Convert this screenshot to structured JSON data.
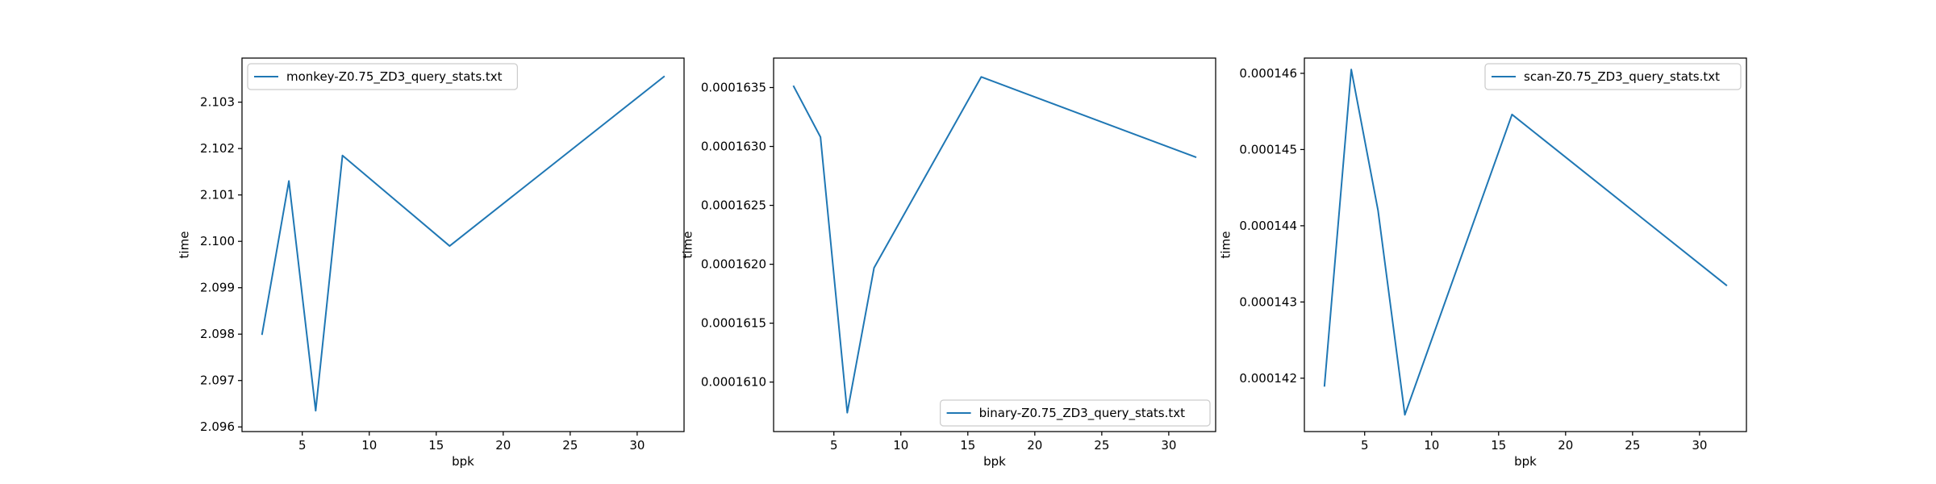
{
  "chart_data": [
    {
      "type": "line",
      "xlabel": "bpk",
      "ylabel": "time",
      "xlim": [
        0.5,
        33.5
      ],
      "ylim": [
        2.0959,
        2.10395
      ],
      "xticks": [
        5,
        10,
        15,
        20,
        25,
        30
      ],
      "xtick_labels": [
        "5",
        "10",
        "15",
        "20",
        "25",
        "30"
      ],
      "yticks": [
        2.096,
        2.097,
        2.098,
        2.099,
        2.1,
        2.101,
        2.102,
        2.103
      ],
      "ytick_labels": [
        "2.096",
        "2.097",
        "2.098",
        "2.099",
        "2.100",
        "2.101",
        "2.102",
        "2.103"
      ],
      "legend_position": "upper-left",
      "series": [
        {
          "name": "monkey-Z0.75_ZD3_query_stats.txt",
          "color": "#1f77b4",
          "x": [
            2,
            4,
            6,
            8,
            16,
            32
          ],
          "y": [
            2.098,
            2.1013,
            2.09635,
            2.10185,
            2.0999,
            2.10355
          ]
        }
      ]
    },
    {
      "type": "line",
      "xlabel": "bpk",
      "ylabel": "time",
      "xlim": [
        0.5,
        33.5
      ],
      "ylim": [
        0.00016058,
        0.00016375
      ],
      "xticks": [
        5,
        10,
        15,
        20,
        25,
        30
      ],
      "xtick_labels": [
        "5",
        "10",
        "15",
        "20",
        "25",
        "30"
      ],
      "yticks": [
        0.000161,
        0.0001615,
        0.000162,
        0.0001625,
        0.000163,
        0.0001635
      ],
      "ytick_labels": [
        "0.0001610",
        "0.0001615",
        "0.0001620",
        "0.0001625",
        "0.0001630",
        "0.0001635"
      ],
      "legend_position": "lower-right",
      "series": [
        {
          "name": "binary-Z0.75_ZD3_query_stats.txt",
          "color": "#1f77b4",
          "x": [
            2,
            4,
            6,
            8,
            16,
            32
          ],
          "y": [
            0.00016351,
            0.00016308,
            0.00016074,
            0.00016197,
            0.00016359,
            0.00016291
          ]
        }
      ]
    },
    {
      "type": "line",
      "xlabel": "bpk",
      "ylabel": "time",
      "xlim": [
        0.5,
        33.5
      ],
      "ylim": [
        0.0001413,
        0.0001462
      ],
      "xticks": [
        5,
        10,
        15,
        20,
        25,
        30
      ],
      "xtick_labels": [
        "5",
        "10",
        "15",
        "20",
        "25",
        "30"
      ],
      "yticks": [
        0.000142,
        0.000143,
        0.000144,
        0.000145,
        0.000146
      ],
      "ytick_labels": [
        "0.000142",
        "0.000143",
        "0.000144",
        "0.000145",
        "0.000146"
      ],
      "legend_position": "upper-right",
      "series": [
        {
          "name": "scan-Z0.75_ZD3_query_stats.txt",
          "color": "#1f77b4",
          "x": [
            2,
            4,
            6,
            8,
            16,
            32
          ],
          "y": [
            0.0001419,
            0.00014605,
            0.0001442,
            0.00014152,
            0.00014546,
            0.00014322
          ]
        }
      ]
    }
  ]
}
